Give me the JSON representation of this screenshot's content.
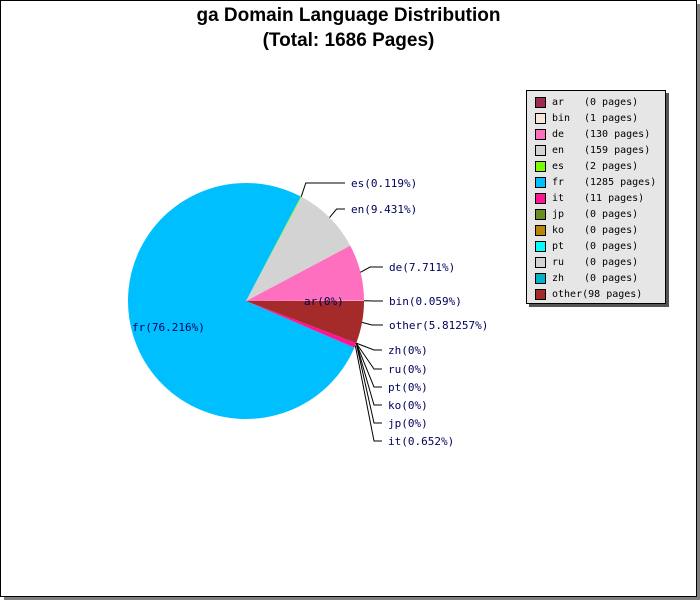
{
  "chart_data": {
    "type": "pie",
    "title": "ga Domain Language Distribution",
    "subtitle": "(Total: 1686 Pages)",
    "slices": [
      {
        "label": "ar(0%)",
        "value": 0,
        "color": "#9e2a55"
      },
      {
        "label": "bin(0.059%)",
        "value": 1,
        "color": "#fae6d6"
      },
      {
        "label": "de(7.711%)",
        "value": 130,
        "color": "#ff6fbf"
      },
      {
        "label": "en(9.431%)",
        "value": 159,
        "color": "#d3d3d3"
      },
      {
        "label": "es(0.119%)",
        "value": 2,
        "color": "#7cfc00"
      },
      {
        "label": "fr(76.216%)",
        "value": 1285,
        "color": "#00bfff"
      },
      {
        "label": "it(0.652%)",
        "value": 11,
        "color": "#ff1493"
      },
      {
        "label": "jp(0%)",
        "value": 0,
        "color": "#6b8e23"
      },
      {
        "label": "ko(0%)",
        "value": 0,
        "color": "#b8860b"
      },
      {
        "label": "pt(0%)",
        "value": 0,
        "color": "#00ffff"
      },
      {
        "label": "ru(0%)",
        "value": 0,
        "color": "#d3d3d3"
      },
      {
        "label": "zh(0%)",
        "value": 0,
        "color": "#00b2c8"
      },
      {
        "label": "other(5.81257%)",
        "value": 98,
        "color": "#a52a2a"
      }
    ],
    "legend": {
      "placement": "right",
      "entries": [
        {
          "name": "ar",
          "count": "(0 pages)"
        },
        {
          "name": "bin",
          "count": "(1 pages)"
        },
        {
          "name": "de",
          "count": "(130 pages)"
        },
        {
          "name": "en",
          "count": "(159 pages)"
        },
        {
          "name": "es",
          "count": "(2 pages)"
        },
        {
          "name": "fr",
          "count": "(1285 pages)"
        },
        {
          "name": "it",
          "count": "(11 pages)"
        },
        {
          "name": "jp",
          "count": "(0 pages)"
        },
        {
          "name": "ko",
          "count": "(0 pages)"
        },
        {
          "name": "pt",
          "count": "(0 pages)"
        },
        {
          "name": "ru",
          "count": "(0 pages)"
        },
        {
          "name": "zh",
          "count": "(0 pages)"
        },
        {
          "name": "other",
          "count": "(98 pages)"
        }
      ]
    }
  }
}
